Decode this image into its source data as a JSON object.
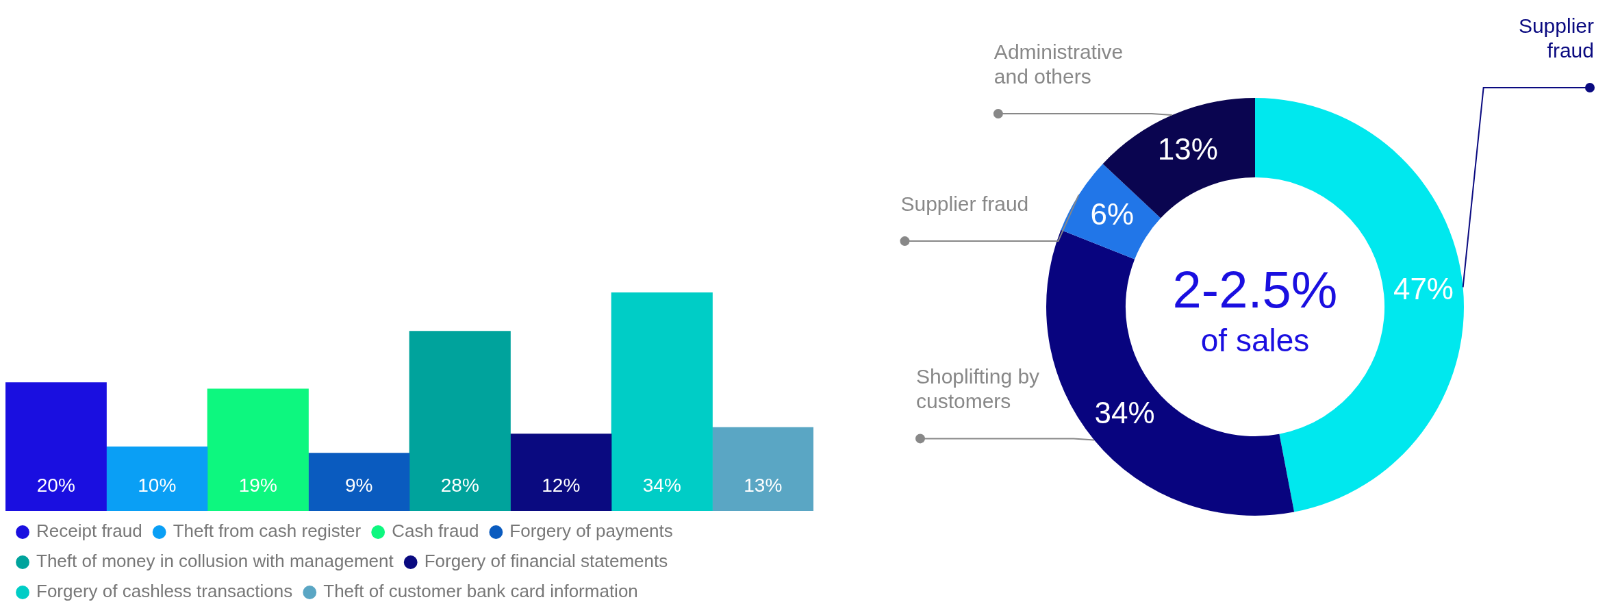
{
  "chart_data": [
    {
      "type": "bar",
      "legend": "bottom",
      "categories": [
        null
      ],
      "series": [
        {
          "name": "Receipt fraud",
          "color": "#1a0fe0",
          "values": [
            20
          ],
          "value_labels": [
            "20%"
          ]
        },
        {
          "name": "Theft from cash register",
          "color": "#0a9ff5",
          "values": [
            10
          ],
          "value_labels": [
            "10%"
          ]
        },
        {
          "name": "Cash fraud",
          "color": "#0df77f",
          "values": [
            19
          ],
          "value_labels": [
            "19%"
          ]
        },
        {
          "name": "Forgery of payments",
          "color": "#0a5bbf",
          "values": [
            9
          ],
          "value_labels": [
            "9%"
          ]
        },
        {
          "name": "Theft of money in collusion with management",
          "color": "#00a39c",
          "values": [
            28
          ],
          "value_labels": [
            "28%"
          ]
        },
        {
          "name": "Forgery of financial statements",
          "color": "#0a0a80",
          "values": [
            12
          ],
          "value_labels": [
            "12%"
          ]
        },
        {
          "name": "Forgery of cashless transactions",
          "color": "#00cdc6",
          "values": [
            34
          ],
          "value_labels": [
            "34%"
          ]
        },
        {
          "name": "Theft of customer bank card information",
          "color": "#5aa6c4",
          "values": [
            13
          ],
          "value_labels": [
            "13%"
          ]
        }
      ]
    },
    {
      "type": "donut",
      "categories": [
        "Supplier fraud",
        "Shoplifting by customers",
        "Supplier fraud",
        "Administrative and others"
      ],
      "values": [
        47,
        34,
        6,
        13
      ],
      "value_labels": [
        "47%",
        "34%",
        "6%",
        "13%"
      ],
      "colors": [
        "#00e8ee",
        "#08047f",
        "#2176e8",
        "#0a0550"
      ],
      "annotations": [
        "2-2.5%",
        "of sales"
      ]
    }
  ]
}
